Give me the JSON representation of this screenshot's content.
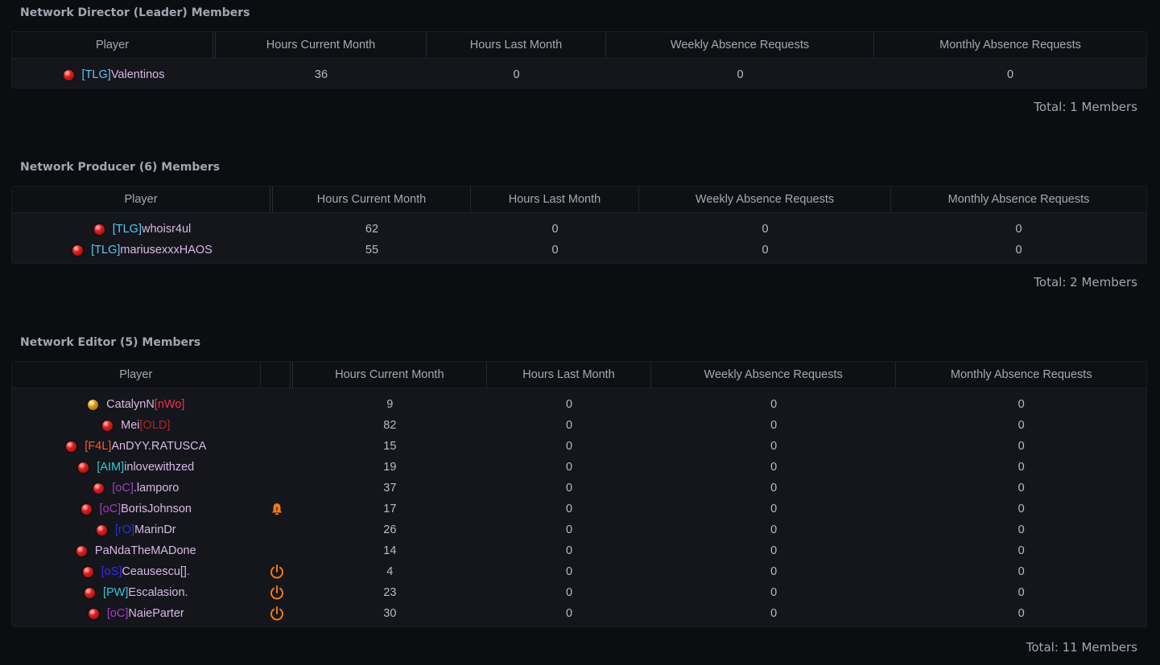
{
  "columns": [
    "Player",
    "Hours Current Month",
    "Hours Last Month",
    "Weekly Absence Requests",
    "Monthly Absence Requests"
  ],
  "colors": {
    "tlg": "#5bc8f5",
    "name": "#d9b8e6",
    "nwo": "#ff2a4d",
    "old": "#b0222c",
    "f4l": "#ff5a2a",
    "aim": "#38c6d8",
    "oc": "#a33fbf",
    "ro": "#2a2ee0",
    "os": "#3a2af5",
    "pw": "#38c6d8",
    "icon_orange": "#f07a1a",
    "status_red": "#e02222",
    "status_orange": "#d99a18"
  },
  "sections": [
    {
      "title": "Network Director (Leader) Members",
      "total": "Total: 1 Members",
      "rows": [
        {
          "status": "red",
          "tag": "[TLG]",
          "tag_color": "tlg",
          "tag_pos": "prefix",
          "name": "Valentinos",
          "icon": "",
          "hours_current": "36",
          "hours_last": "0",
          "weekly": "0",
          "monthly": "0"
        }
      ]
    },
    {
      "title": "Network Producer (6) Members",
      "total": "Total: 2 Members",
      "rows": [
        {
          "status": "red",
          "tag": "[TLG]",
          "tag_color": "tlg",
          "tag_pos": "prefix",
          "name": "whoisr4ul",
          "icon": "",
          "hours_current": "62",
          "hours_last": "0",
          "weekly": "0",
          "monthly": "0"
        },
        {
          "status": "red",
          "tag": "[TLG]",
          "tag_color": "tlg",
          "tag_pos": "prefix",
          "name": "mariusexxxHAOS",
          "icon": "",
          "hours_current": "55",
          "hours_last": "0",
          "weekly": "0",
          "monthly": "0"
        }
      ]
    },
    {
      "title": "Network Editor (5) Members",
      "total": "Total: 11 Members",
      "rows": [
        {
          "status": "orange",
          "tag": "[nWo]",
          "tag_color": "nwo",
          "tag_pos": "suffix",
          "name": "CatalynN",
          "icon": "",
          "hours_current": "9",
          "hours_last": "0",
          "weekly": "0",
          "monthly": "0"
        },
        {
          "status": "red",
          "tag": "[OLD]",
          "tag_color": "old",
          "tag_pos": "suffix",
          "name": "Mei",
          "icon": "",
          "hours_current": "82",
          "hours_last": "0",
          "weekly": "0",
          "monthly": "0"
        },
        {
          "status": "red",
          "tag": "[F4L]",
          "tag_color": "f4l",
          "tag_pos": "prefix",
          "name": "AnDYY.RATUSCA",
          "icon": "",
          "hours_current": "15",
          "hours_last": "0",
          "weekly": "0",
          "monthly": "0"
        },
        {
          "status": "red",
          "tag": "[AIM]",
          "tag_color": "aim",
          "tag_pos": "prefix",
          "name": "inlovewithzed",
          "icon": "",
          "hours_current": "19",
          "hours_last": "0",
          "weekly": "0",
          "monthly": "0"
        },
        {
          "status": "red",
          "tag": "[oC]",
          "tag_color": "oc",
          "tag_pos": "prefix",
          "name": ".lamporo",
          "icon": "",
          "hours_current": "37",
          "hours_last": "0",
          "weekly": "0",
          "monthly": "0"
        },
        {
          "status": "red",
          "tag": "[oC]",
          "tag_color": "oc",
          "tag_pos": "prefix",
          "name": "BorisJohnson",
          "icon": "alarm-icon",
          "hours_current": "17",
          "hours_last": "0",
          "weekly": "0",
          "monthly": "0"
        },
        {
          "status": "red",
          "tag": "[rO]",
          "tag_color": "ro",
          "tag_pos": "prefix",
          "name": "MarinDr",
          "icon": "",
          "hours_current": "26",
          "hours_last": "0",
          "weekly": "0",
          "monthly": "0"
        },
        {
          "status": "red",
          "tag": "",
          "tag_color": "name",
          "tag_pos": "prefix",
          "name": "PaNdaTheMADone",
          "icon": "",
          "hours_current": "14",
          "hours_last": "0",
          "weekly": "0",
          "monthly": "0"
        },
        {
          "status": "red",
          "tag": "[oS]",
          "tag_color": "os",
          "tag_pos": "prefix",
          "name": "Ceausescu[].",
          "icon": "power-icon",
          "hours_current": "4",
          "hours_last": "0",
          "weekly": "0",
          "monthly": "0"
        },
        {
          "status": "red",
          "tag": "[PW]",
          "tag_color": "pw",
          "tag_pos": "prefix",
          "name": "Escalasion.",
          "icon": "power-icon",
          "hours_current": "23",
          "hours_last": "0",
          "weekly": "0",
          "monthly": "0"
        },
        {
          "status": "red",
          "tag": "[oC]",
          "tag_color": "oc",
          "tag_pos": "prefix",
          "name": "NaieParter",
          "icon": "power-icon",
          "hours_current": "30",
          "hours_last": "0",
          "weekly": "0",
          "monthly": "0"
        }
      ]
    }
  ]
}
